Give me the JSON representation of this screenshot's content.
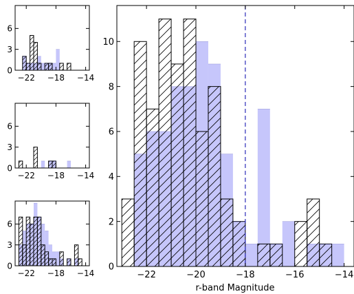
{
  "chart_data": [
    {
      "type": "bar",
      "panel": "small-top",
      "xlim": [
        -23.5,
        -13.5
      ],
      "ylim": [
        0,
        9.3
      ],
      "xticks": [
        -22,
        -18,
        -14
      ],
      "yticks": [
        0,
        3,
        6
      ],
      "xtick_labels": [
        "−22",
        "−18",
        "−14"
      ],
      "ytick_labels": [
        "0",
        "3",
        "6"
      ],
      "bin_width": 0.5,
      "series": [
        {
          "style": "blue-fill",
          "bins": [
            {
              "x": -22.5,
              "value": 2
            },
            {
              "x": -22.0,
              "value": 1
            },
            {
              "x": -21.5,
              "value": 1
            },
            {
              "x": -21.0,
              "value": 1
            },
            {
              "x": -20.5,
              "value": 2
            },
            {
              "x": -20.0,
              "value": 1
            },
            {
              "x": -19.5,
              "value": 1
            },
            {
              "x": -19.0,
              "value": 1
            },
            {
              "x": -18.5,
              "value": 1
            },
            {
              "x": -18.0,
              "value": 3
            }
          ]
        },
        {
          "style": "hatched-outline",
          "bins": [
            {
              "x": -22.5,
              "value": 2
            },
            {
              "x": -22.0,
              "value": 1
            },
            {
              "x": -21.5,
              "value": 5
            },
            {
              "x": -21.0,
              "value": 4
            },
            {
              "x": -20.5,
              "value": 1
            },
            {
              "x": -19.5,
              "value": 1
            },
            {
              "x": -19.0,
              "value": 1
            },
            {
              "x": -17.5,
              "value": 1
            },
            {
              "x": -16.5,
              "value": 1
            }
          ]
        }
      ]
    },
    {
      "type": "bar",
      "panel": "small-middle",
      "xlim": [
        -23.5,
        -13.5
      ],
      "ylim": [
        0,
        9.3
      ],
      "xticks": [
        -22,
        -18,
        -14
      ],
      "yticks": [
        0,
        3,
        6
      ],
      "xtick_labels": [
        "−22",
        "−18",
        "−14"
      ],
      "ytick_labels": [
        "0",
        "3",
        "6"
      ],
      "bin_width": 0.5,
      "series": [
        {
          "style": "blue-fill",
          "bins": [
            {
              "x": -20.0,
              "value": 1
            },
            {
              "x": -19.0,
              "value": 1
            },
            {
              "x": -18.5,
              "value": 1
            },
            {
              "x": -16.5,
              "value": 1
            }
          ]
        },
        {
          "style": "hatched-outline",
          "bins": [
            {
              "x": -23.0,
              "value": 1
            },
            {
              "x": -21.0,
              "value": 3
            },
            {
              "x": -19.0,
              "value": 1
            },
            {
              "x": -18.5,
              "value": 1
            }
          ]
        }
      ]
    },
    {
      "type": "bar",
      "panel": "small-bottom",
      "xlim": [
        -23.5,
        -13.5
      ],
      "ylim": [
        0,
        9.3
      ],
      "xticks": [
        -22,
        -18,
        -14
      ],
      "yticks": [
        0,
        3,
        6
      ],
      "xtick_labels": [
        "−22",
        "−18",
        "−14"
      ],
      "ytick_labels": [
        "0",
        "3",
        "6"
      ],
      "bin_width": 0.5,
      "series": [
        {
          "style": "blue-fill",
          "bins": [
            {
              "x": -23.0,
              "value": 3
            },
            {
              "x": -22.5,
              "value": 5
            },
            {
              "x": -22.0,
              "value": 6
            },
            {
              "x": -21.5,
              "value": 6
            },
            {
              "x": -21.0,
              "value": 9
            },
            {
              "x": -20.5,
              "value": 7
            },
            {
              "x": -20.0,
              "value": 6
            },
            {
              "x": -19.5,
              "value": 5
            },
            {
              "x": -19.0,
              "value": 3
            },
            {
              "x": -18.5,
              "value": 2
            },
            {
              "x": -18.0,
              "value": 2
            },
            {
              "x": -17.5,
              "value": 1
            },
            {
              "x": -16.5,
              "value": 1
            },
            {
              "x": -15.5,
              "value": 1
            }
          ]
        },
        {
          "style": "hatched-outline",
          "bins": [
            {
              "x": -23.0,
              "value": 7
            },
            {
              "x": -22.5,
              "value": 3
            },
            {
              "x": -22.0,
              "value": 7
            },
            {
              "x": -21.5,
              "value": 6
            },
            {
              "x": -21.0,
              "value": 7
            },
            {
              "x": -20.5,
              "value": 7
            },
            {
              "x": -20.0,
              "value": 3
            },
            {
              "x": -19.5,
              "value": 2
            },
            {
              "x": -19.0,
              "value": 1
            },
            {
              "x": -18.5,
              "value": 1
            },
            {
              "x": -17.5,
              "value": 2
            },
            {
              "x": -16.5,
              "value": 1
            },
            {
              "x": -15.5,
              "value": 3
            },
            {
              "x": -15.0,
              "value": 1
            }
          ]
        }
      ]
    },
    {
      "type": "bar",
      "panel": "main",
      "xlabel": "r-band Magnitude",
      "xlim": [
        -23.2,
        -13.6
      ],
      "ylim": [
        0,
        11.6
      ],
      "xticks": [
        -22,
        -20,
        -18,
        -16,
        -14
      ],
      "yticks": [
        0,
        2,
        4,
        6,
        8,
        10
      ],
      "xtick_labels": [
        "−22",
        "−20",
        "−18",
        "−16",
        "−14"
      ],
      "ytick_labels": [
        "0",
        "2",
        "4",
        "6",
        "8",
        "10"
      ],
      "bin_width": 0.5,
      "vline": -18.0,
      "series": [
        {
          "style": "blue-fill",
          "bins": [
            {
              "x": -22.5,
              "value": 5
            },
            {
              "x": -22.0,
              "value": 6
            },
            {
              "x": -21.5,
              "value": 6
            },
            {
              "x": -21.0,
              "value": 8
            },
            {
              "x": -20.5,
              "value": 8
            },
            {
              "x": -20.0,
              "value": 10
            },
            {
              "x": -19.5,
              "value": 9
            },
            {
              "x": -19.0,
              "value": 5
            },
            {
              "x": -18.5,
              "value": 2
            },
            {
              "x": -18.0,
              "value": 1
            },
            {
              "x": -17.5,
              "value": 7
            },
            {
              "x": -17.0,
              "value": 1
            },
            {
              "x": -16.5,
              "value": 2
            },
            {
              "x": -15.5,
              "value": 1
            },
            {
              "x": -15.0,
              "value": 1
            },
            {
              "x": -14.5,
              "value": 1
            }
          ]
        },
        {
          "style": "hatched-outline",
          "bins": [
            {
              "x": -23.0,
              "value": 3
            },
            {
              "x": -22.5,
              "value": 10
            },
            {
              "x": -22.0,
              "value": 7
            },
            {
              "x": -21.5,
              "value": 11
            },
            {
              "x": -21.0,
              "value": 9
            },
            {
              "x": -20.5,
              "value": 11
            },
            {
              "x": -20.0,
              "value": 6
            },
            {
              "x": -19.5,
              "value": 8
            },
            {
              "x": -19.0,
              "value": 3
            },
            {
              "x": -18.5,
              "value": 2
            },
            {
              "x": -17.5,
              "value": 1
            },
            {
              "x": -17.0,
              "value": 1
            },
            {
              "x": -16.0,
              "value": 2
            },
            {
              "x": -15.5,
              "value": 3
            },
            {
              "x": -15.0,
              "value": 1
            }
          ]
        }
      ]
    }
  ],
  "style": {
    "blue_fill": "#c6c6fb",
    "blue_edge": "#3a3aa8",
    "hatch_edge": "#000000",
    "vline_color": "#2a2ab8"
  }
}
